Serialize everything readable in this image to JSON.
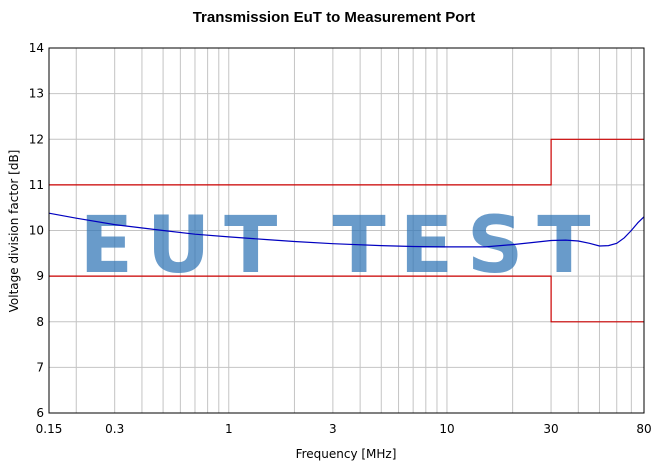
{
  "chart_data": {
    "type": "line",
    "title": "Transmission EuT to Measurement Port",
    "xlabel": "Frequency [MHz]",
    "ylabel": "Voltage division factor [dB]",
    "xscale": "log",
    "xlim": [
      0.15,
      80
    ],
    "ylim": [
      6,
      14
    ],
    "xticks": [
      {
        "value": 0.15,
        "label": "0.15"
      },
      {
        "value": 0.3,
        "label": "0.3"
      },
      {
        "value": 1,
        "label": "1"
      },
      {
        "value": 3,
        "label": "3"
      },
      {
        "value": 10,
        "label": "10"
      },
      {
        "value": 30,
        "label": "30"
      },
      {
        "value": 80,
        "label": "80"
      }
    ],
    "yticks": [
      6,
      7,
      8,
      9,
      10,
      11,
      12,
      13,
      14
    ],
    "grid": true,
    "legend": "none",
    "series": [
      {
        "color": "#0000c0",
        "x": [
          0.15,
          0.2,
          0.3,
          0.5,
          0.7,
          1,
          1.5,
          2,
          3,
          5,
          7,
          10,
          15,
          20,
          25,
          30,
          35,
          40,
          45,
          50,
          55,
          60,
          65,
          70,
          75,
          80
        ],
        "y": [
          10.38,
          10.27,
          10.13,
          10.0,
          9.92,
          9.86,
          9.8,
          9.76,
          9.71,
          9.67,
          9.65,
          9.64,
          9.64,
          9.69,
          9.74,
          9.78,
          9.79,
          9.77,
          9.72,
          9.66,
          9.67,
          9.72,
          9.84,
          10.0,
          10.17,
          10.3
        ]
      },
      {
        "color": "#cc0000",
        "x": [
          0.15,
          30,
          30,
          80
        ],
        "y": [
          11,
          11,
          12,
          12
        ]
      },
      {
        "color": "#cc0000",
        "x": [
          0.15,
          30,
          30,
          80
        ],
        "y": [
          9,
          9,
          8,
          8
        ]
      }
    ]
  },
  "watermark": "EUT TEST"
}
